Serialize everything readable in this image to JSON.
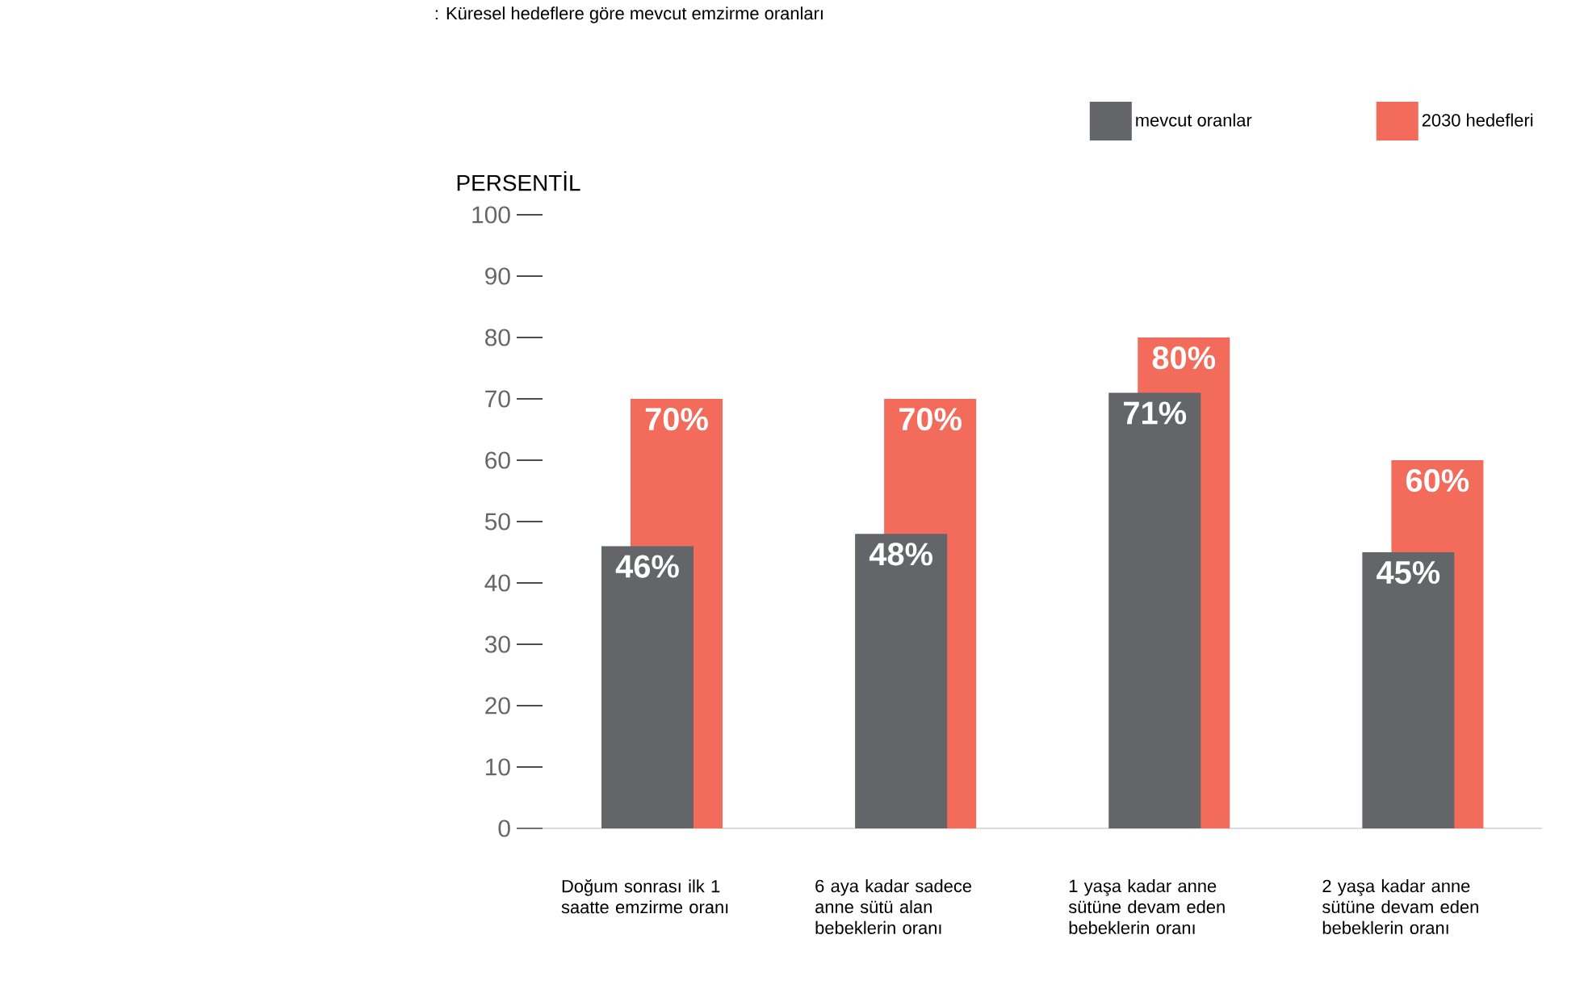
{
  "chart_data": {
    "type": "bar",
    "title": ": Küresel hedeflere göre mevcut emzirme oranları",
    "ylabel": "PERSENTİL",
    "categories": [
      "Doğum sonrası ilk 1 saatte emzirme oranı",
      "6 aya kadar sadece anne sütü alan bebeklerin oranı",
      "1 yaşa kadar anne sütüne devam eden bebeklerin oranı",
      "2 yaşa kadar anne sütüne devam eden bebeklerin oranı"
    ],
    "series": [
      {
        "name": "mevcut oranlar",
        "color": "#646569",
        "values": [
          46,
          48,
          71,
          45
        ],
        "value_labels": [
          "46%",
          "48%",
          "71%",
          "45%"
        ]
      },
      {
        "name": "2030 hedefleri",
        "color": "#f26b5b",
        "values": [
          70,
          70,
          80,
          60
        ],
        "value_labels": [
          "70%",
          "70%",
          "80%",
          "60%"
        ]
      }
    ],
    "ylim": [
      0,
      100
    ],
    "yticks": [
      0,
      10,
      20,
      30,
      40,
      50,
      60,
      70,
      80,
      90,
      100
    ],
    "legend": "top right",
    "grid": false
  }
}
